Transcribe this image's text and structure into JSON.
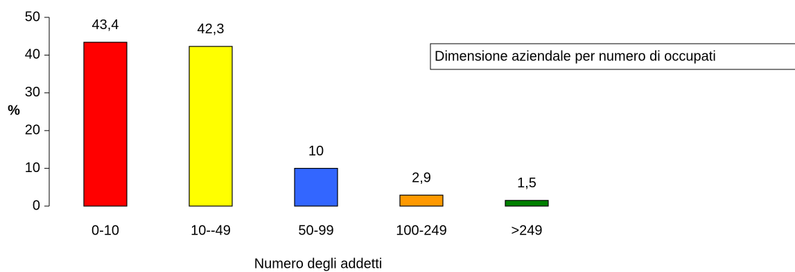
{
  "chart_data": {
    "type": "bar",
    "categories": [
      "0-10",
      "10--49",
      "50-99",
      "100-249",
      ">249"
    ],
    "values": [
      43.4,
      42.3,
      10,
      2.9,
      1.5
    ],
    "data_labels": [
      "43,4",
      "42,3",
      "10",
      "2,9",
      "1,5"
    ],
    "colors": [
      "#ff0000",
      "#ffff00",
      "#3366ff",
      "#ff9900",
      "#008000"
    ],
    "xlabel": "Numero degli addetti",
    "ylabel": "%",
    "ylim": [
      0,
      50
    ],
    "yticks": [
      0,
      10,
      20,
      30,
      40,
      50
    ],
    "legend_text": "Dimensione aziendale per numero di occupati",
    "legend_position": "top-right",
    "grid": false
  }
}
